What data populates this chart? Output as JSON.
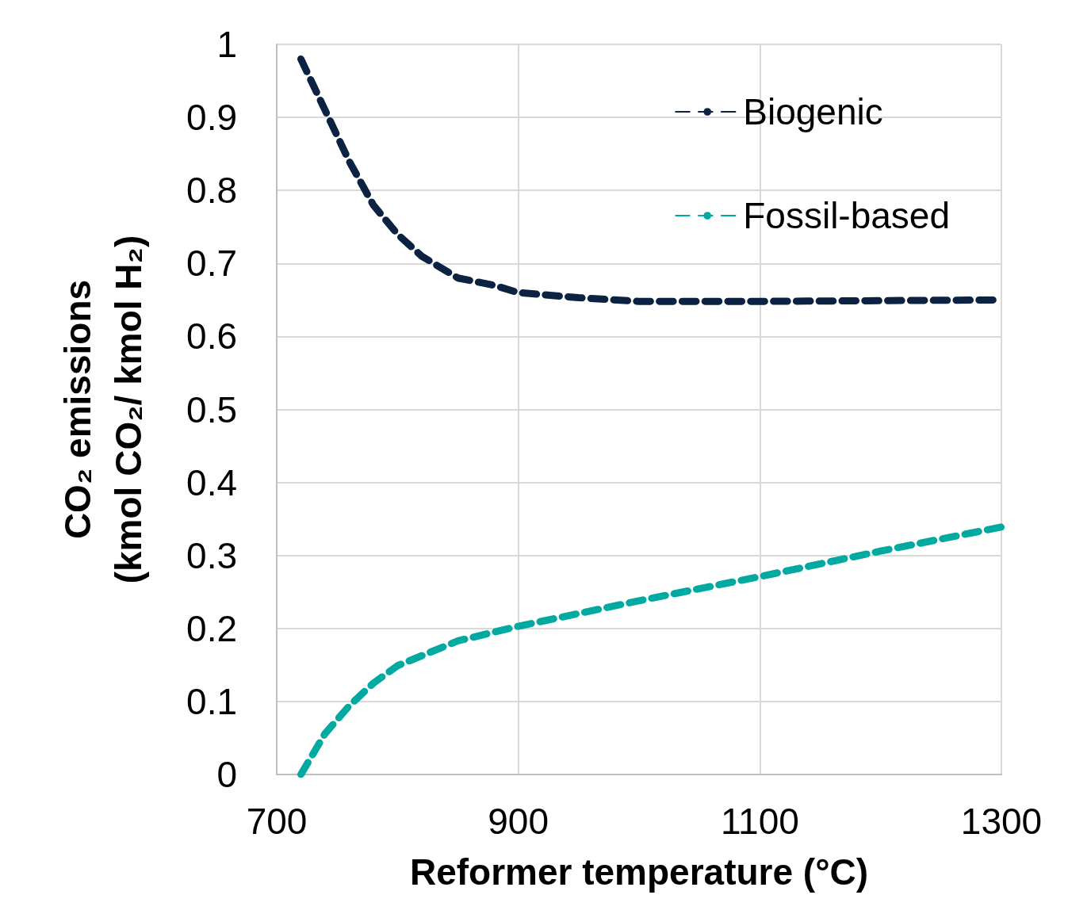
{
  "chart_data": {
    "type": "line",
    "xlabel": "Reformer temperature (°C)",
    "ylabel": "CO₂ emissions\n(kmol CO₂/ kmol H₂)",
    "xlim": [
      700,
      1300
    ],
    "xticks": [
      700,
      900,
      1100,
      1300
    ],
    "ylim": [
      0,
      1
    ],
    "yticks": [
      0,
      0.1,
      0.2,
      0.3,
      0.4,
      0.5,
      0.6,
      0.7,
      0.8,
      0.9,
      1
    ],
    "grid": true,
    "legend": "top right",
    "marker": "none",
    "line_style": "dashed",
    "series": [
      {
        "name": "Biogenic",
        "color": "#0b2242",
        "x": [
          720,
          740,
          760,
          780,
          800,
          820,
          850,
          880,
          900,
          950,
          1000,
          1100,
          1200,
          1300
        ],
        "values": [
          0.98,
          0.91,
          0.84,
          0.78,
          0.74,
          0.71,
          0.68,
          0.67,
          0.66,
          0.653,
          0.648,
          0.648,
          0.649,
          0.65
        ]
      },
      {
        "name": "Fossil-based",
        "color": "#00aaa0",
        "x": [
          720,
          740,
          760,
          780,
          800,
          850,
          900,
          1000,
          1100,
          1200,
          1300
        ],
        "values": [
          0,
          0.056,
          0.094,
          0.125,
          0.149,
          0.183,
          0.203,
          0.238,
          0.271,
          0.306,
          0.339
        ]
      }
    ]
  }
}
